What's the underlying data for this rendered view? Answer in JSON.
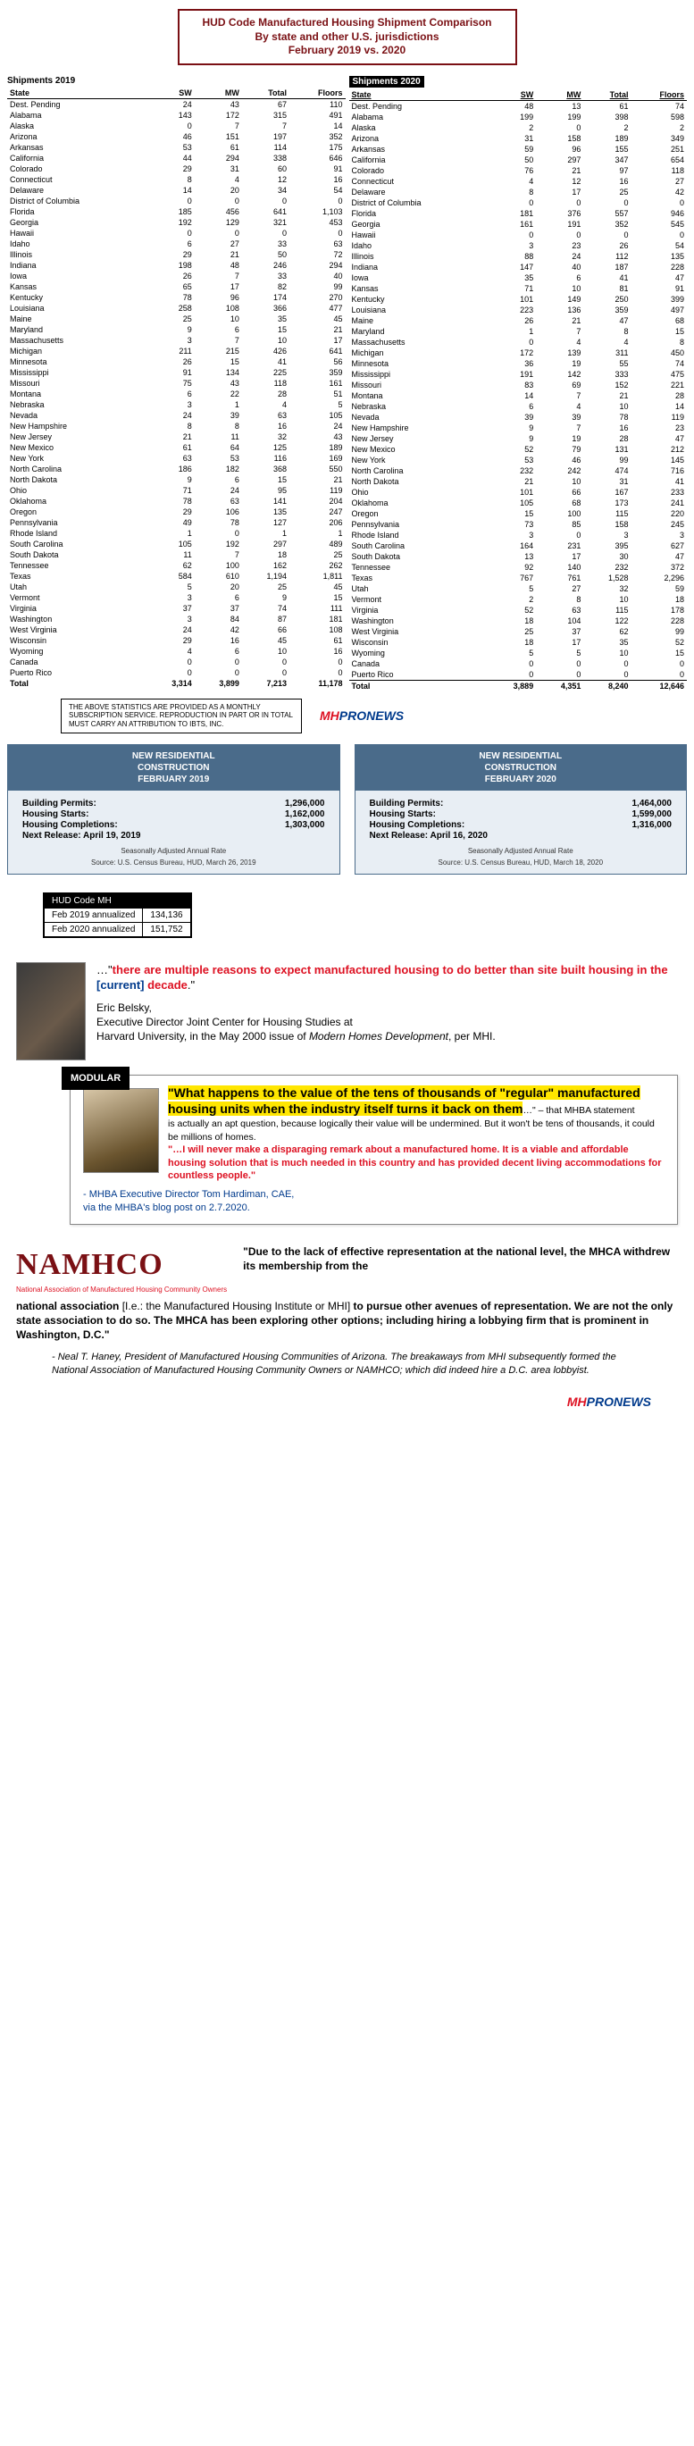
{
  "title": {
    "l1": "HUD Code Manufactured Housing Shipment Comparison",
    "l2": "By state and other U.S. jurisdictions",
    "l3": "February 2019 vs. 2020"
  },
  "tbl2019": {
    "title": "Shipments 2019",
    "cols": [
      "State",
      "SW",
      "MW",
      "Total",
      "Floors"
    ]
  },
  "tbl2020": {
    "title": "Shipments 2020",
    "cols": [
      "State",
      "SW",
      "MW",
      "Total",
      "Floors"
    ]
  },
  "rows2019": [
    [
      "Dest. Pending",
      "24",
      "43",
      "67",
      "110"
    ],
    [
      "Alabama",
      "143",
      "172",
      "315",
      "491"
    ],
    [
      "Alaska",
      "0",
      "7",
      "7",
      "14"
    ],
    [
      "Arizona",
      "46",
      "151",
      "197",
      "352"
    ],
    [
      "Arkansas",
      "53",
      "61",
      "114",
      "175"
    ],
    [
      "California",
      "44",
      "294",
      "338",
      "646"
    ],
    [
      "Colorado",
      "29",
      "31",
      "60",
      "91"
    ],
    [
      "Connecticut",
      "8",
      "4",
      "12",
      "16"
    ],
    [
      "Delaware",
      "14",
      "20",
      "34",
      "54"
    ],
    [
      "District of Columbia",
      "0",
      "0",
      "0",
      "0"
    ],
    [
      "Florida",
      "185",
      "456",
      "641",
      "1,103"
    ],
    [
      "Georgia",
      "192",
      "129",
      "321",
      "453"
    ],
    [
      "Hawaii",
      "0",
      "0",
      "0",
      "0"
    ],
    [
      "Idaho",
      "6",
      "27",
      "33",
      "63"
    ],
    [
      "Illinois",
      "29",
      "21",
      "50",
      "72"
    ],
    [
      "Indiana",
      "198",
      "48",
      "246",
      "294"
    ],
    [
      "Iowa",
      "26",
      "7",
      "33",
      "40"
    ],
    [
      "Kansas",
      "65",
      "17",
      "82",
      "99"
    ],
    [
      "Kentucky",
      "78",
      "96",
      "174",
      "270"
    ],
    [
      "Louisiana",
      "258",
      "108",
      "366",
      "477"
    ],
    [
      "Maine",
      "25",
      "10",
      "35",
      "45"
    ],
    [
      "Maryland",
      "9",
      "6",
      "15",
      "21"
    ],
    [
      "Massachusetts",
      "3",
      "7",
      "10",
      "17"
    ],
    [
      "Michigan",
      "211",
      "215",
      "426",
      "641"
    ],
    [
      "Minnesota",
      "26",
      "15",
      "41",
      "56"
    ],
    [
      "Mississippi",
      "91",
      "134",
      "225",
      "359"
    ],
    [
      "Missouri",
      "75",
      "43",
      "118",
      "161"
    ],
    [
      "Montana",
      "6",
      "22",
      "28",
      "51"
    ],
    [
      "Nebraska",
      "3",
      "1",
      "4",
      "5"
    ],
    [
      "Nevada",
      "24",
      "39",
      "63",
      "105"
    ],
    [
      "New Hampshire",
      "8",
      "8",
      "16",
      "24"
    ],
    [
      "New Jersey",
      "21",
      "11",
      "32",
      "43"
    ],
    [
      "New Mexico",
      "61",
      "64",
      "125",
      "189"
    ],
    [
      "New York",
      "63",
      "53",
      "116",
      "169"
    ],
    [
      "North Carolina",
      "186",
      "182",
      "368",
      "550"
    ],
    [
      "North Dakota",
      "9",
      "6",
      "15",
      "21"
    ],
    [
      "Ohio",
      "71",
      "24",
      "95",
      "119"
    ],
    [
      "Oklahoma",
      "78",
      "63",
      "141",
      "204"
    ],
    [
      "Oregon",
      "29",
      "106",
      "135",
      "247"
    ],
    [
      "Pennsylvania",
      "49",
      "78",
      "127",
      "206"
    ],
    [
      "Rhode Island",
      "1",
      "0",
      "1",
      "1"
    ],
    [
      "South Carolina",
      "105",
      "192",
      "297",
      "489"
    ],
    [
      "South Dakota",
      "11",
      "7",
      "18",
      "25"
    ],
    [
      "Tennessee",
      "62",
      "100",
      "162",
      "262"
    ],
    [
      "Texas",
      "584",
      "610",
      "1,194",
      "1,811"
    ],
    [
      "Utah",
      "5",
      "20",
      "25",
      "45"
    ],
    [
      "Vermont",
      "3",
      "6",
      "9",
      "15"
    ],
    [
      "Virginia",
      "37",
      "37",
      "74",
      "111"
    ],
    [
      "Washington",
      "3",
      "84",
      "87",
      "181"
    ],
    [
      "West Virginia",
      "24",
      "42",
      "66",
      "108"
    ],
    [
      "Wisconsin",
      "29",
      "16",
      "45",
      "61"
    ],
    [
      "Wyoming",
      "4",
      "6",
      "10",
      "16"
    ],
    [
      "Canada",
      "0",
      "0",
      "0",
      "0"
    ],
    [
      "Puerto Rico",
      "0",
      "0",
      "0",
      "0"
    ]
  ],
  "total2019": [
    "Total",
    "3,314",
    "3,899",
    "7,213",
    "11,178"
  ],
  "rows2020": [
    [
      "Dest. Pending",
      "48",
      "13",
      "61",
      "74"
    ],
    [
      "Alabama",
      "199",
      "199",
      "398",
      "598"
    ],
    [
      "Alaska",
      "2",
      "0",
      "2",
      "2"
    ],
    [
      "Arizona",
      "31",
      "158",
      "189",
      "349"
    ],
    [
      "Arkansas",
      "59",
      "96",
      "155",
      "251"
    ],
    [
      "California",
      "50",
      "297",
      "347",
      "654"
    ],
    [
      "Colorado",
      "76",
      "21",
      "97",
      "118"
    ],
    [
      "Connecticut",
      "4",
      "12",
      "16",
      "27"
    ],
    [
      "Delaware",
      "8",
      "17",
      "25",
      "42"
    ],
    [
      "District of Columbia",
      "0",
      "0",
      "0",
      "0"
    ],
    [
      "Florida",
      "181",
      "376",
      "557",
      "946"
    ],
    [
      "Georgia",
      "161",
      "191",
      "352",
      "545"
    ],
    [
      "Hawaii",
      "0",
      "0",
      "0",
      "0"
    ],
    [
      "Idaho",
      "3",
      "23",
      "26",
      "54"
    ],
    [
      "Illinois",
      "88",
      "24",
      "112",
      "135"
    ],
    [
      "Indiana",
      "147",
      "40",
      "187",
      "228"
    ],
    [
      "Iowa",
      "35",
      "6",
      "41",
      "47"
    ],
    [
      "Kansas",
      "71",
      "10",
      "81",
      "91"
    ],
    [
      "Kentucky",
      "101",
      "149",
      "250",
      "399"
    ],
    [
      "Louisiana",
      "223",
      "136",
      "359",
      "497"
    ],
    [
      "Maine",
      "26",
      "21",
      "47",
      "68"
    ],
    [
      "Maryland",
      "1",
      "7",
      "8",
      "15"
    ],
    [
      "Massachusetts",
      "0",
      "4",
      "4",
      "8"
    ],
    [
      "Michigan",
      "172",
      "139",
      "311",
      "450"
    ],
    [
      "Minnesota",
      "36",
      "19",
      "55",
      "74"
    ],
    [
      "Mississippi",
      "191",
      "142",
      "333",
      "475"
    ],
    [
      "Missouri",
      "83",
      "69",
      "152",
      "221"
    ],
    [
      "Montana",
      "14",
      "7",
      "21",
      "28"
    ],
    [
      "Nebraska",
      "6",
      "4",
      "10",
      "14"
    ],
    [
      "Nevada",
      "39",
      "39",
      "78",
      "119"
    ],
    [
      "New Hampshire",
      "9",
      "7",
      "16",
      "23"
    ],
    [
      "New Jersey",
      "9",
      "19",
      "28",
      "47"
    ],
    [
      "New Mexico",
      "52",
      "79",
      "131",
      "212"
    ],
    [
      "New York",
      "53",
      "46",
      "99",
      "145"
    ],
    [
      "North Carolina",
      "232",
      "242",
      "474",
      "716"
    ],
    [
      "North Dakota",
      "21",
      "10",
      "31",
      "41"
    ],
    [
      "Ohio",
      "101",
      "66",
      "167",
      "233"
    ],
    [
      "Oklahoma",
      "105",
      "68",
      "173",
      "241"
    ],
    [
      "Oregon",
      "15",
      "100",
      "115",
      "220"
    ],
    [
      "Pennsylvania",
      "73",
      "85",
      "158",
      "245"
    ],
    [
      "Rhode Island",
      "3",
      "0",
      "3",
      "3"
    ],
    [
      "South Carolina",
      "164",
      "231",
      "395",
      "627"
    ],
    [
      "South Dakota",
      "13",
      "17",
      "30",
      "47"
    ],
    [
      "Tennessee",
      "92",
      "140",
      "232",
      "372"
    ],
    [
      "Texas",
      "767",
      "761",
      "1,528",
      "2,296"
    ],
    [
      "Utah",
      "5",
      "27",
      "32",
      "59"
    ],
    [
      "Vermont",
      "2",
      "8",
      "10",
      "18"
    ],
    [
      "Virginia",
      "52",
      "63",
      "115",
      "178"
    ],
    [
      "Washington",
      "18",
      "104",
      "122",
      "228"
    ],
    [
      "West Virginia",
      "25",
      "37",
      "62",
      "99"
    ],
    [
      "Wisconsin",
      "18",
      "17",
      "35",
      "52"
    ],
    [
      "Wyoming",
      "5",
      "5",
      "10",
      "15"
    ],
    [
      "Canada",
      "0",
      "0",
      "0",
      "0"
    ],
    [
      "Puerto Rico",
      "0",
      "0",
      "0",
      "0"
    ]
  ],
  "total2020": [
    "Total",
    "3,889",
    "4,351",
    "8,240",
    "12,646"
  ],
  "disclaimer": "THE ABOVE STATISTICS ARE PROVIDED AS A MONTHLY SUBSCRIPTION SERVICE. REPRODUCTION IN PART OR IN TOTAL MUST CARRY AN ATTRIBUTION TO IBTS, INC.",
  "logo": {
    "mh": "MH",
    "pro": "PRONEWS"
  },
  "con2019": {
    "title1": "NEW RESIDENTIAL",
    "title2": "CONSTRUCTION",
    "title3": "FEBRUARY 2019",
    "permits_l": "Building Permits:",
    "permits_v": "1,296,000",
    "starts_l": "Housing Starts:",
    "starts_v": "1,162,000",
    "comp_l": "Housing Completions:",
    "comp_v": "1,303,000",
    "next": "Next Release:  April 19, 2019",
    "src1": "Seasonally Adjusted Annual Rate",
    "src2": "Source:  U.S. Census Bureau, HUD, March 26, 2019"
  },
  "con2020": {
    "title1": "NEW RESIDENTIAL",
    "title2": "CONSTRUCTION",
    "title3": "FEBRUARY 2020",
    "permits_l": "Building Permits:",
    "permits_v": "1,464,000",
    "starts_l": "Housing Starts:",
    "starts_v": "1,599,000",
    "comp_l": "Housing Completions:",
    "comp_v": "1,316,000",
    "next": "Next Release:  April 16, 2020",
    "src1": "Seasonally Adjusted Annual Rate",
    "src2": "Source:  U.S. Census Bureau, HUD, March 18, 2020"
  },
  "annual": {
    "hdr": "HUD Code MH",
    "r1l": "Feb 2019 annualized",
    "r1v": "134,136",
    "r2l": "Feb 2020 annualized",
    "r2v": "151,752"
  },
  "q1": {
    "pre": "…\"",
    "hl": "there are multiple reasons to expect manufactured housing to do better than site built housing in the ",
    "bracket": "[current]",
    "hl2": " decade",
    "post": ".\"",
    "name": "Eric Belsky,",
    "title": "Executive Director Joint Center for Housing Studies at",
    "inst": "Harvard University, in the May 2000 issue of ",
    "pub": "Modern Homes Development",
    "tail": ", per MHI."
  },
  "q2": {
    "badge": "MODULAR",
    "hl1": "\"What happens to the value of the tens of thousands of \"regular\" manufactured housing units when the industry itself turns it back on them",
    "post1": "…\" – that MHBA statement",
    "body": "is actually an apt question, because logically their value will be undermined. But it won't be tens of thousands, it could be millions of homes.",
    "red": "\"…I will never make a disparaging remark about a manufactured home. It is a viable and affordable housing solution that is much needed in this country and has provided decent living accommodations for countless people.\"",
    "attr1": "-    MHBA Executive Director Tom Hardiman, CAE,",
    "attr2": "via the MHBA's blog post on 2.7.2020."
  },
  "q3": {
    "logo": "NAMHCO",
    "sub": "National Association of Manufactured Housing Community Owners",
    "lead": "\"Due to the lack of effective representation at the national level, the MHCA withdrew its membership from the",
    "bold1": "national association ",
    "paren": "[I.e.: the Manufactured Housing Institute or MHI] ",
    "bold2": "to pursue other avenues of representation. We are not the only state association to do so. The MHCA has been exploring other options; including hiring a lobbying firm that is prominent in Washington, D.C.\"",
    "attr": "-    Neal T. Haney, President of Manufactured Housing Communities of Arizona. The breakaways from MHI subsequently formed the National Association of Manufactured Housing Community Owners or NAMHCO; which did indeed hire a D.C. area lobbyist."
  }
}
